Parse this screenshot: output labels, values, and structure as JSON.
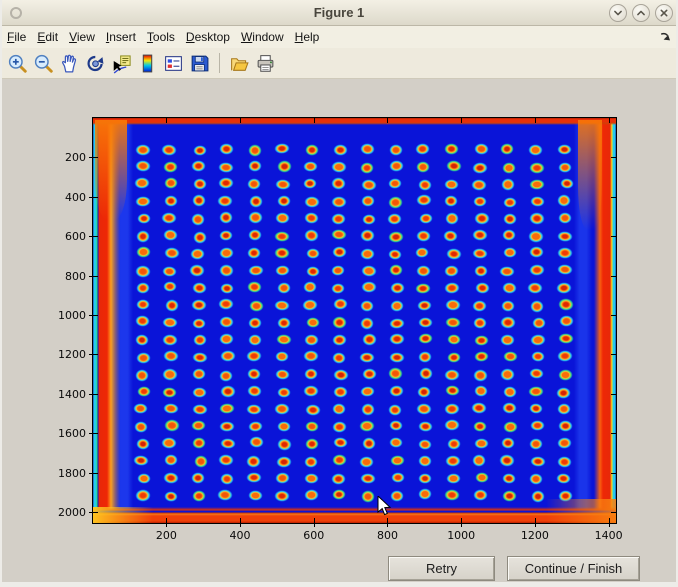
{
  "window": {
    "title": "Figure 1",
    "controls": [
      {
        "name": "shade-button",
        "glyph": "chevron-down"
      },
      {
        "name": "maximize-button",
        "glyph": "chevron-up"
      },
      {
        "name": "close-button",
        "glyph": "x"
      }
    ]
  },
  "menubar": {
    "items": [
      {
        "label": "File",
        "mnemonic": 0
      },
      {
        "label": "Edit",
        "mnemonic": 0
      },
      {
        "label": "View",
        "mnemonic": 0
      },
      {
        "label": "Insert",
        "mnemonic": 0
      },
      {
        "label": "Tools",
        "mnemonic": 0
      },
      {
        "label": "Desktop",
        "mnemonic": 0
      },
      {
        "label": "Window",
        "mnemonic": 0
      },
      {
        "label": "Help",
        "mnemonic": 0
      }
    ]
  },
  "toolbar": {
    "tools": [
      {
        "name": "zoom-in"
      },
      {
        "name": "zoom-out"
      },
      {
        "name": "pan"
      },
      {
        "name": "rotate-3d"
      },
      {
        "name": "data-cursor"
      },
      {
        "name": "colorbar"
      },
      {
        "name": "insert-legend"
      },
      {
        "name": "save"
      },
      {
        "name": "separator"
      },
      {
        "name": "open"
      },
      {
        "name": "print"
      }
    ]
  },
  "buttons": {
    "retry": "Retry",
    "continue_finish": "Continue / Finish"
  },
  "chart_data": {
    "type": "heatmap",
    "title": "",
    "xlabel": "",
    "ylabel": "",
    "colormap": "jet",
    "x_range": [
      1,
      1420
    ],
    "y_range": [
      1,
      2055
    ],
    "x_ticks": [
      200,
      400,
      600,
      800,
      1000,
      1200,
      1400
    ],
    "y_ticks": [
      200,
      400,
      600,
      800,
      1000,
      1200,
      1400,
      1600,
      1800,
      2000
    ],
    "grid": {
      "rows": 21,
      "cols": 16,
      "x_first": 135,
      "x_last": 1282,
      "y_first": 160,
      "y_last": 1915
    },
    "legend": "none",
    "description": "Microarray / dot-blot intensity image: 21 x 16 grid of high-intensity spots (red cores, yellow-orange rings, cyan halos) on a low-intensity deep-blue background, with saturated red/orange border bands along all four edges of the scanned plate."
  },
  "colors": {
    "background_blue": "#0a14d8",
    "spot_core": "#e02800",
    "spot_ring": "#fcc028",
    "spot_halo": "#2ad0f2",
    "border_red": "#e83008",
    "canvas_gray": "#d3cfc7",
    "chrome_beige": "#eeeadd"
  }
}
